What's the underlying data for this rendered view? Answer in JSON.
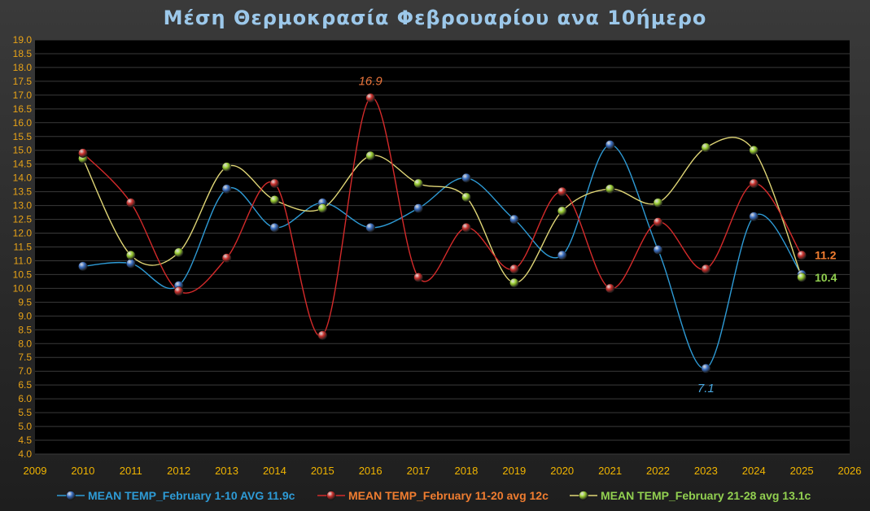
{
  "chart_data": {
    "type": "line",
    "title": "Μέση Θερμοκρασία Φεβρουαρίου ανα 10ήμερο",
    "xlabel": "",
    "ylabel": "",
    "xlim": [
      2009,
      2026
    ],
    "ylim": [
      4.0,
      19.0
    ],
    "ystep": 0.5,
    "x_ticks": [
      "2009",
      "2010",
      "2011",
      "2012",
      "2013",
      "2014",
      "2015",
      "2016",
      "2017",
      "2018",
      "2019",
      "2020",
      "2021",
      "2022",
      "2023",
      "2024",
      "2025",
      "2026"
    ],
    "x": [
      2010,
      2011,
      2012,
      2013,
      2014,
      2015,
      2016,
      2017,
      2018,
      2019,
      2020,
      2021,
      2022,
      2023,
      2024,
      2025
    ],
    "grid": "horizontal",
    "legend_position": "bottom",
    "series": [
      {
        "name": "MEAN TEMP_February 1-10 AVG 11.9c",
        "color": "#2e9bd6",
        "marker_color": "#3b6fc2",
        "values": [
          10.8,
          10.9,
          10.1,
          13.6,
          12.2,
          13.1,
          12.2,
          12.9,
          14.0,
          12.5,
          11.2,
          15.2,
          11.4,
          7.1,
          12.6,
          10.5
        ]
      },
      {
        "name": "MEAN TEMP_February 11-20 avg 12c",
        "color": "#d42a2a",
        "marker_color": "#c9302c",
        "values": [
          14.9,
          13.1,
          9.9,
          11.1,
          13.8,
          8.3,
          16.9,
          10.4,
          12.2,
          10.7,
          13.5,
          10.0,
          12.4,
          10.7,
          13.8,
          11.2
        ]
      },
      {
        "name": "MEAN TEMP_February 21-28 avg 13.1c",
        "color": "#e0d676",
        "marker_color": "#9acd32",
        "values": [
          14.7,
          11.2,
          11.3,
          14.4,
          13.2,
          12.9,
          14.8,
          13.8,
          13.3,
          10.2,
          12.8,
          13.6,
          13.1,
          15.1,
          15.0,
          10.4
        ]
      }
    ],
    "annotations": [
      {
        "text": "16.9",
        "series": 1,
        "index": 6,
        "color": "#e8743b",
        "pos": "above"
      },
      {
        "text": "7.1",
        "series": 0,
        "index": 13,
        "color": "#4aa8e0",
        "pos": "below"
      },
      {
        "text": "11.2",
        "series": 1,
        "index": 15,
        "color": "#f07d30",
        "pos": "right"
      },
      {
        "text": "10.4",
        "series": 2,
        "index": 15,
        "color": "#92d050",
        "pos": "right"
      }
    ],
    "legend_colors": [
      "#2e9bd6",
      "#f07d30",
      "#92d050"
    ]
  }
}
